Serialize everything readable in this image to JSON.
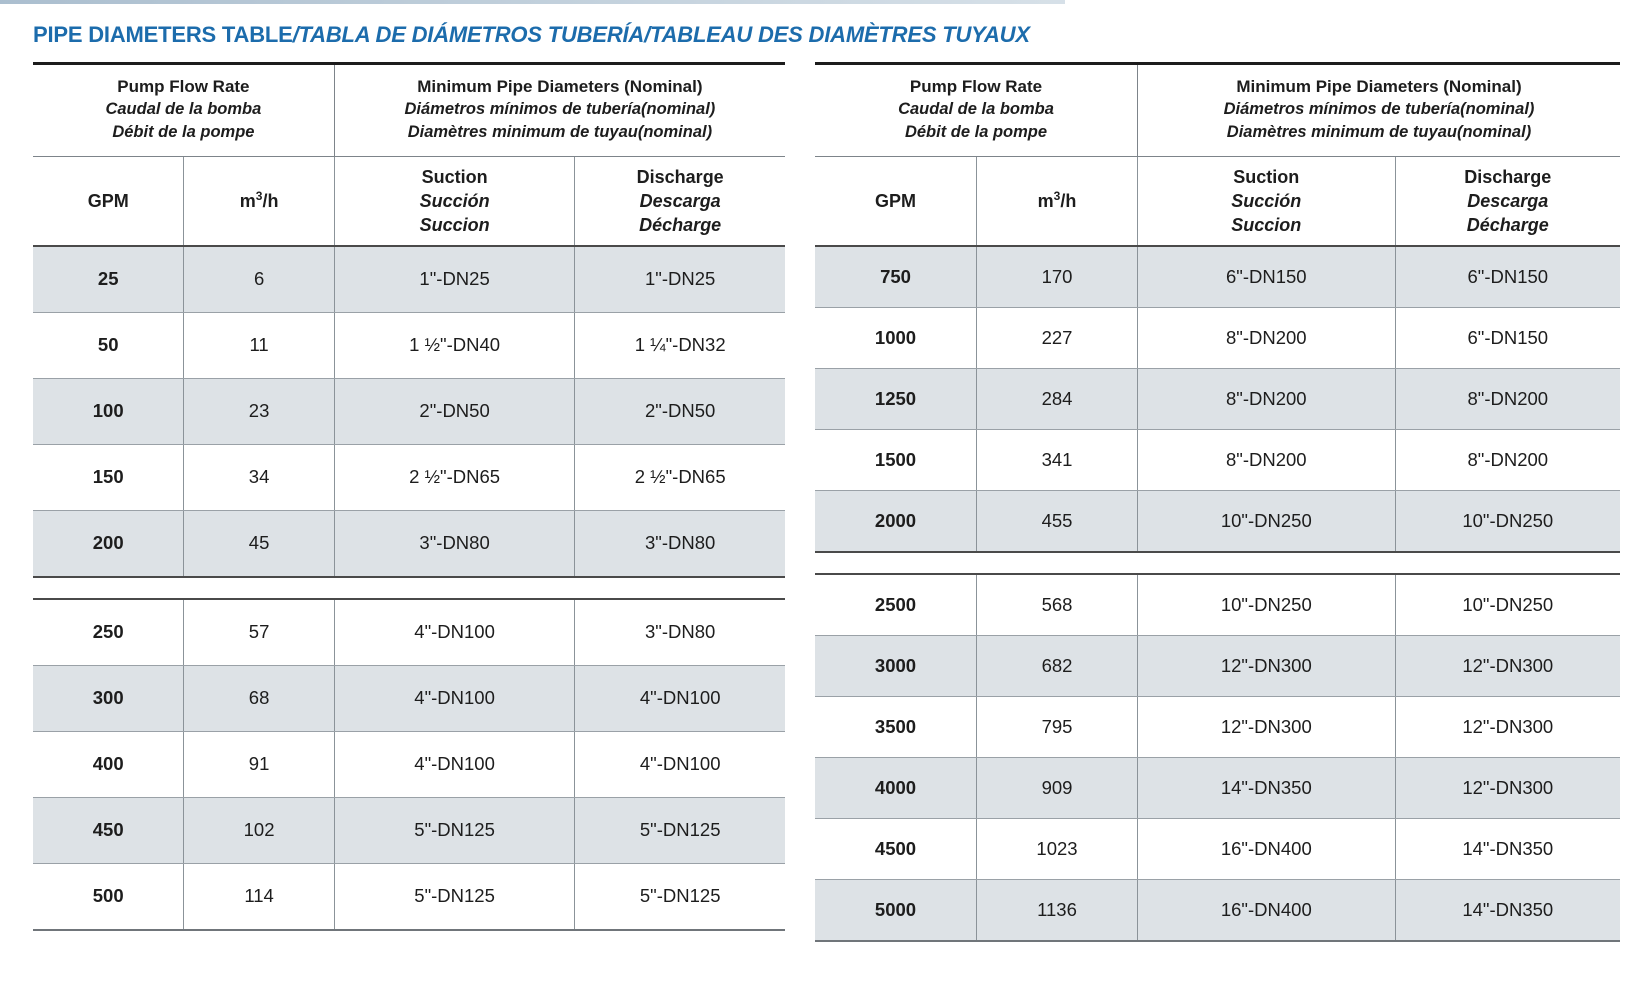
{
  "page": {
    "title_main": "PIPE DIAMETERS TABLE",
    "title_rest": "/TABLA DE DIÁMETROS TUBERÍA/TABLEAU DES DIAMÈTRES TUYAUX"
  },
  "colors": {
    "title_blue": "#1c6cac",
    "row_shade": "#dde2e6",
    "rule_dark": "#1c1c1c",
    "rule_gray": "#8b9399"
  },
  "header_labels": {
    "flow_group": [
      "Pump Flow Rate",
      "Caudal de la bomba",
      "Débit de la pompe"
    ],
    "diameter_group": [
      "Minimum Pipe Diameters (Nominal)",
      "Diámetros mínimos de tubería(nominal)",
      "Diamètres minimum de tuyau(nominal)"
    ],
    "gpm": "GPM",
    "m3h_prefix": "m",
    "m3h_sup": "3",
    "m3h_suffix": "/h",
    "suction": [
      "Suction",
      "Succión",
      "Succion"
    ],
    "discharge": [
      "Discharge",
      "Descarga",
      "Décharge"
    ]
  },
  "tables": [
    {
      "id": "left",
      "sections": [
        {
          "rows": [
            {
              "gpm": "25",
              "m3h": "6",
              "suction": "1\"-DN25",
              "discharge": "1\"-DN25"
            },
            {
              "gpm": "50",
              "m3h": "11",
              "suction": "1 ½\"-DN40",
              "discharge": "1 ¼\"-DN32"
            },
            {
              "gpm": "100",
              "m3h": "23",
              "suction": "2\"-DN50",
              "discharge": "2\"-DN50"
            },
            {
              "gpm": "150",
              "m3h": "34",
              "suction": "2 ½\"-DN65",
              "discharge": "2 ½\"-DN65"
            },
            {
              "gpm": "200",
              "m3h": "45",
              "suction": "3\"-DN80",
              "discharge": "3\"-DN80"
            }
          ]
        },
        {
          "rows": [
            {
              "gpm": "250",
              "m3h": "57",
              "suction": "4\"-DN100",
              "discharge": "3\"-DN80"
            },
            {
              "gpm": "300",
              "m3h": "68",
              "suction": "4\"-DN100",
              "discharge": "4\"-DN100"
            },
            {
              "gpm": "400",
              "m3h": "91",
              "suction": "4\"-DN100",
              "discharge": "4\"-DN100"
            },
            {
              "gpm": "450",
              "m3h": "102",
              "suction": "5\"-DN125",
              "discharge": "5\"-DN125"
            },
            {
              "gpm": "500",
              "m3h": "114",
              "suction": "5\"-DN125",
              "discharge": "5\"-DN125"
            }
          ]
        }
      ]
    },
    {
      "id": "right",
      "sections": [
        {
          "rows": [
            {
              "gpm": "750",
              "m3h": "170",
              "suction": "6\"-DN150",
              "discharge": "6\"-DN150"
            },
            {
              "gpm": "1000",
              "m3h": "227",
              "suction": "8\"-DN200",
              "discharge": "6\"-DN150"
            },
            {
              "gpm": "1250",
              "m3h": "284",
              "suction": "8\"-DN200",
              "discharge": "8\"-DN200"
            },
            {
              "gpm": "1500",
              "m3h": "341",
              "suction": "8\"-DN200",
              "discharge": "8\"-DN200"
            },
            {
              "gpm": "2000",
              "m3h": "455",
              "suction": "10\"-DN250",
              "discharge": "10\"-DN250"
            }
          ]
        },
        {
          "rows": [
            {
              "gpm": "2500",
              "m3h": "568",
              "suction": "10\"-DN250",
              "discharge": "10\"-DN250"
            },
            {
              "gpm": "3000",
              "m3h": "682",
              "suction": "12\"-DN300",
              "discharge": "12\"-DN300"
            },
            {
              "gpm": "3500",
              "m3h": "795",
              "suction": "12\"-DN300",
              "discharge": "12\"-DN300"
            },
            {
              "gpm": "4000",
              "m3h": "909",
              "suction": "14\"-DN350",
              "discharge": "12\"-DN300"
            },
            {
              "gpm": "4500",
              "m3h": "1023",
              "suction": "16\"-DN400",
              "discharge": "14\"-DN350"
            },
            {
              "gpm": "5000",
              "m3h": "1136",
              "suction": "16\"-DN400",
              "discharge": "14\"-DN350"
            }
          ]
        }
      ]
    }
  ]
}
